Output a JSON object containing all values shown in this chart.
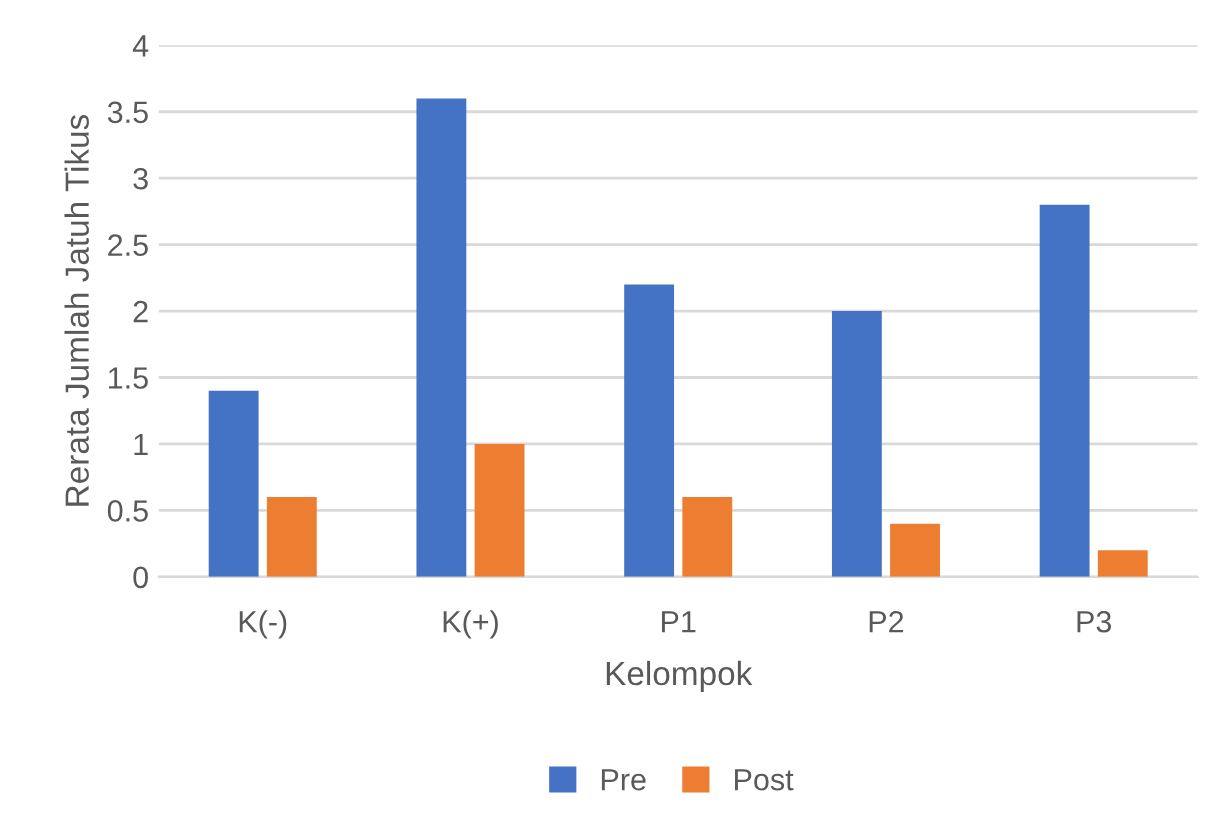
{
  "chart_data": {
    "type": "bar",
    "xlabel": "Kelompok",
    "ylabel": "Rerata Jumlah Jatuh Tikus",
    "categories": [
      "K(-)",
      "K(+)",
      "P1",
      "P2",
      "P3"
    ],
    "series": [
      {
        "name": "Pre",
        "color": "#4472c4",
        "values": [
          1.4,
          3.6,
          2.2,
          2.0,
          2.8
        ]
      },
      {
        "name": "Post",
        "color": "#ed7d31",
        "values": [
          0.6,
          1.0,
          0.6,
          0.4,
          0.2
        ]
      }
    ],
    "ylim": [
      0,
      4
    ],
    "yticks": [
      0,
      0.5,
      1,
      1.5,
      2,
      2.5,
      3,
      3.5,
      4
    ],
    "grid": "y",
    "legend": "bottom"
  }
}
